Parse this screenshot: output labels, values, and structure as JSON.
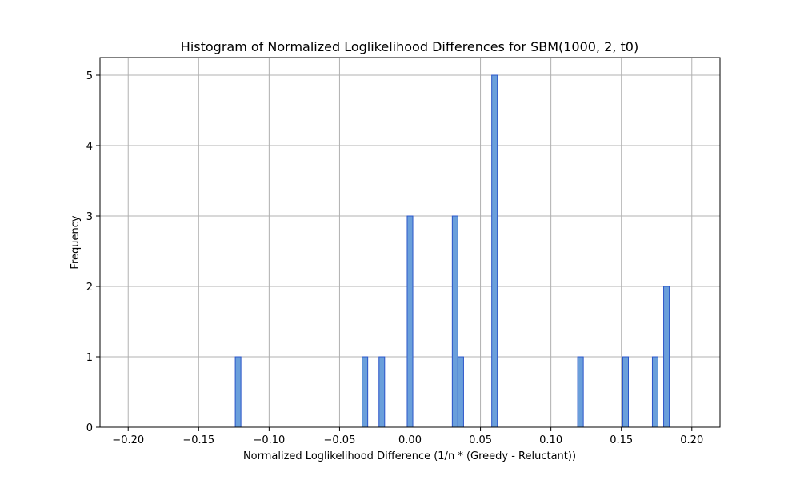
{
  "chart_data": {
    "type": "bar",
    "title": "Histogram of Normalized Loglikelihood Differences for SBM(1000, 2, t0)",
    "xlabel": "Normalized Loglikelihood Difference (1/n * (Greedy - Reluctant))",
    "ylabel": "Frequency",
    "xlim": [
      -0.22,
      0.22
    ],
    "ylim": [
      0,
      5.25
    ],
    "xticks": [
      -0.2,
      -0.15,
      -0.1,
      -0.05,
      0.0,
      0.05,
      0.1,
      0.15,
      0.2
    ],
    "xtick_labels": [
      "−0.20",
      "−0.15",
      "−0.10",
      "−0.05",
      "0.00",
      "0.05",
      "0.10",
      "0.15",
      "0.20"
    ],
    "yticks": [
      0,
      1,
      2,
      3,
      4,
      5
    ],
    "ytick_labels": [
      "0",
      "1",
      "2",
      "3",
      "4",
      "5"
    ],
    "bin_width": 0.004,
    "bins": [
      {
        "x": -0.122,
        "count": 1
      },
      {
        "x": -0.032,
        "count": 1
      },
      {
        "x": -0.02,
        "count": 1
      },
      {
        "x": 0.0,
        "count": 3
      },
      {
        "x": 0.032,
        "count": 3
      },
      {
        "x": 0.036,
        "count": 1
      },
      {
        "x": 0.06,
        "count": 5
      },
      {
        "x": 0.121,
        "count": 1
      },
      {
        "x": 0.153,
        "count": 1
      },
      {
        "x": 0.174,
        "count": 1
      },
      {
        "x": 0.182,
        "count": 2
      }
    ],
    "grid": true,
    "bar_color": "#6a9fdb",
    "bar_edge_color": "#2b55c8"
  }
}
